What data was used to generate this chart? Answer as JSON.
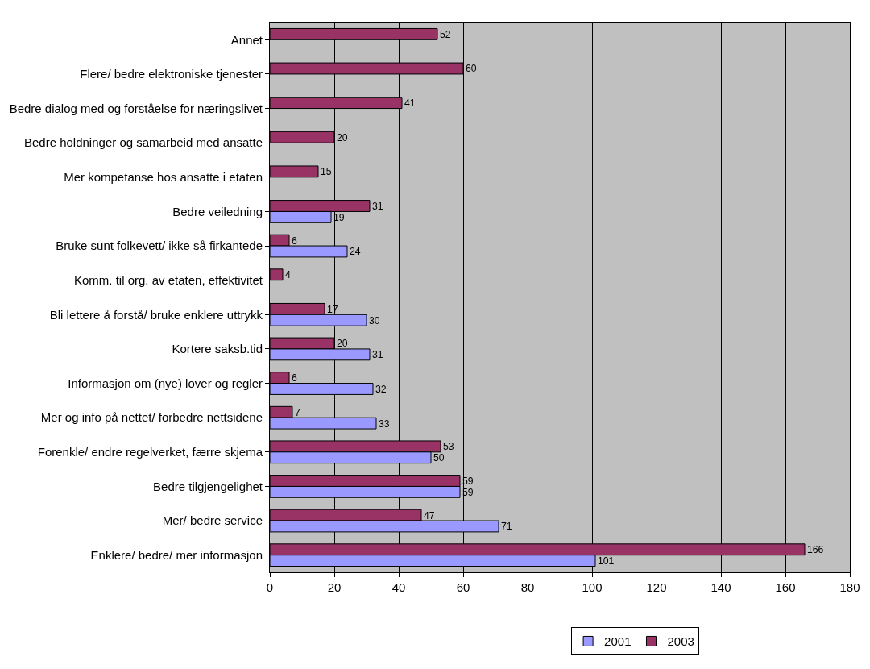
{
  "chart_data": {
    "type": "bar",
    "orientation": "horizontal",
    "categories": [
      "Annet",
      "Flere/ bedre elektroniske tjenester",
      "Bedre dialog med og forståelse for næringslivet",
      "Bedre holdninger og samarbeid med ansatte",
      "Mer kompetanse hos ansatte i etaten",
      "Bedre veiledning",
      "Bruke sunt folkevett/ ikke så firkantede",
      "Komm. til org. av etaten, effektivitet",
      "Bli lettere å forstå/ bruke enklere uttrykk",
      "Kortere saksb.tid",
      "Informasjon om (nye) lover og regler",
      "Mer og info på nettet/ forbedre nettsidene",
      "Forenkle/ endre regelverket, færre skjema",
      "Bedre tilgjengelighet",
      "Mer/ bedre service",
      "Enklere/ bedre/ mer informasjon"
    ],
    "series": [
      {
        "name": "2001",
        "color": "#9999ff",
        "values": [
          null,
          null,
          null,
          null,
          null,
          19,
          24,
          null,
          30,
          31,
          32,
          33,
          50,
          59,
          71,
          101
        ]
      },
      {
        "name": "2003",
        "color": "#993366",
        "values": [
          52,
          60,
          41,
          20,
          15,
          31,
          6,
          4,
          17,
          20,
          6,
          7,
          53,
          59,
          47,
          166
        ]
      }
    ],
    "xlim": [
      0,
      180
    ],
    "xticks": [
      0,
      20,
      40,
      60,
      80,
      100,
      120,
      140,
      160,
      180
    ],
    "grid": "x",
    "legend": "bottom",
    "data_labels": true
  }
}
